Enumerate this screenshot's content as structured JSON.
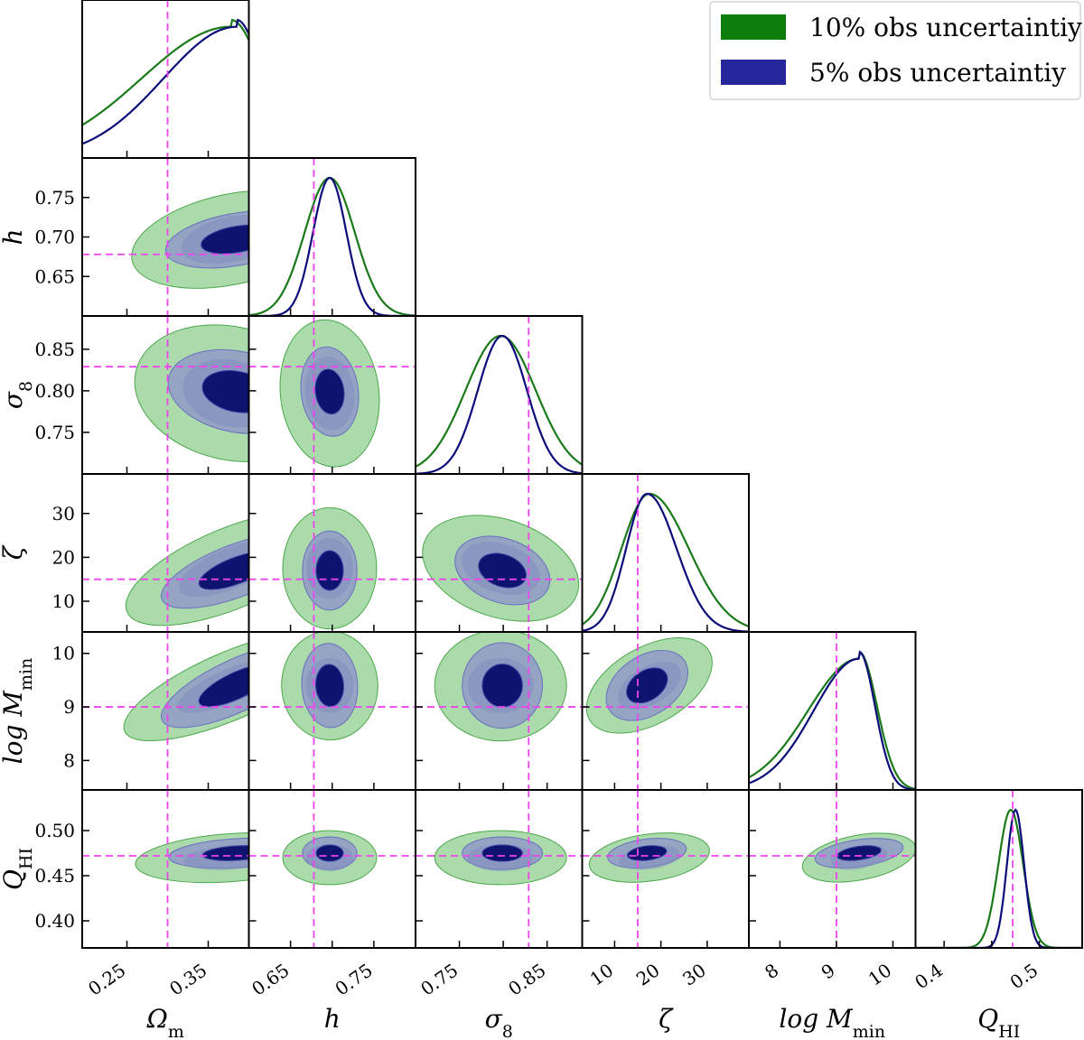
{
  "chart_data": {
    "type": "corner",
    "title": "",
    "parameters": [
      {
        "key": "Om",
        "label": "Ω",
        "sub": "m",
        "range": [
          0.195,
          0.4
        ],
        "ticks": [
          0.25,
          0.35
        ],
        "tick_labels": [
          "0.25",
          "0.35"
        ],
        "truth": 0.3
      },
      {
        "key": "h",
        "label": "h",
        "sub": "",
        "range": [
          0.6,
          0.8
        ],
        "ticks": [
          0.65,
          0.7,
          0.75
        ],
        "tick_labels": [
          "0.65",
          "0.70",
          "0.75"
        ],
        "x_tick_labels": [
          "0.65",
          "",
          "0.75"
        ],
        "truth": 0.678
      },
      {
        "key": "s8",
        "label": "σ",
        "sub": "8",
        "range": [
          0.7,
          0.89
        ],
        "ticks": [
          0.75,
          0.8,
          0.85
        ],
        "tick_labels": [
          "0.75",
          "0.80",
          "0.85"
        ],
        "x_tick_labels": [
          "0.75",
          "",
          "0.85"
        ],
        "truth": 0.829
      },
      {
        "key": "zeta",
        "label": "ζ",
        "sub": "",
        "range": [
          3,
          39
        ],
        "ticks": [
          10,
          20,
          30
        ],
        "tick_labels": [
          "10",
          "20",
          "30"
        ],
        "truth": 15
      },
      {
        "key": "logM",
        "label": "log M",
        "sub": "min",
        "range": [
          7.45,
          10.4
        ],
        "ticks": [
          8,
          9,
          10
        ],
        "tick_labels": [
          "8",
          "9",
          "10"
        ],
        "truth": 9.0
      },
      {
        "key": "QHI",
        "label": "Q",
        "sub": "HI",
        "range": [
          0.37,
          0.545
        ],
        "ticks": [
          0.4,
          0.45,
          0.5
        ],
        "tick_labels": [
          "0.40",
          "0.45",
          "0.50"
        ],
        "x_tick_labels": [
          "0.4",
          "",
          "0.5"
        ],
        "truth": 0.472
      }
    ],
    "series": [
      {
        "name": "10% obs uncertaintiy",
        "color": "#1a7a1a",
        "fill": "#2e9e2e",
        "peaks": {
          "Om": 0.378,
          "h": 0.697,
          "s8": 0.797,
          "zeta": 17.5,
          "logM": 9.4,
          "QHI": 0.47
        },
        "sigmas": {
          "Om": 0.055,
          "h": 0.03,
          "s8": 0.04,
          "zeta": 6.0,
          "logM": 0.45,
          "QHI": 0.013
        }
      },
      {
        "name": "5% obs uncertaintiy",
        "color": "#0b0b7a",
        "fill": "#2a2aa0",
        "peaks": {
          "Om": 0.385,
          "h": 0.697,
          "s8": 0.799,
          "zeta": 17.0,
          "logM": 9.4,
          "QHI": 0.475
        },
        "sigmas": {
          "Om": 0.045,
          "h": 0.02,
          "s8": 0.028,
          "zeta": 4.5,
          "logM": 0.4,
          "QHI": 0.009
        }
      }
    ],
    "truth_line_color": "#ee44ee",
    "legend_position": "top-right"
  },
  "legend": {
    "items": [
      {
        "label": "10% obs uncertaintiy",
        "color": "#0a7d0a"
      },
      {
        "label": "5% obs uncertaintiy",
        "color": "#25259c"
      }
    ]
  }
}
